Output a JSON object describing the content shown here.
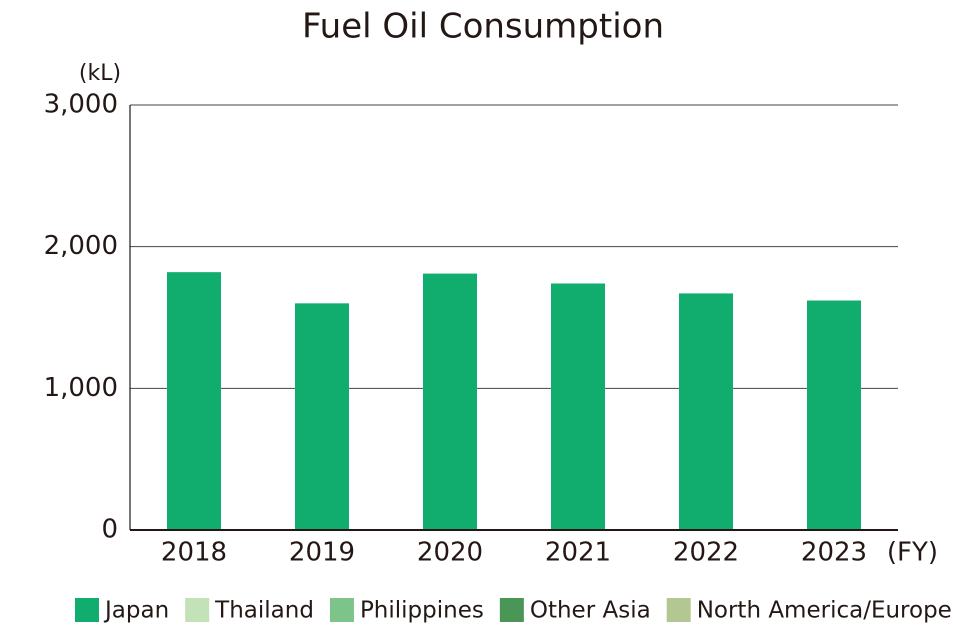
{
  "chart_data": {
    "type": "stacked-bar",
    "title": "Fuel Oil Consumption",
    "y_unit": "(kL)",
    "x_unit": "(FY)",
    "categories": [
      "2018",
      "2019",
      "2020",
      "2021",
      "2022",
      "2023"
    ],
    "series": [
      {
        "name": "Japan",
        "color": "#10ad6e",
        "values": [
          1820,
          1600,
          1810,
          1740,
          1670,
          1620
        ]
      },
      {
        "name": "Thailand",
        "color": "#c3e2b7",
        "values": [
          0,
          0,
          0,
          0,
          0,
          0
        ]
      },
      {
        "name": "Philippines",
        "color": "#7cc48a",
        "values": [
          0,
          0,
          0,
          0,
          0,
          0
        ]
      },
      {
        "name": "Other Asia",
        "color": "#4a9657",
        "values": [
          0,
          0,
          0,
          0,
          0,
          0
        ]
      },
      {
        "name": "North America/Europe",
        "color": "#b3c792",
        "values": [
          0,
          0,
          0,
          0,
          0,
          0
        ]
      }
    ],
    "ylim": [
      0,
      3000
    ],
    "yticks": [
      0,
      {
        "value": 1000,
        "label": "1,000"
      },
      {
        "value": 2000,
        "label": "2,000"
      },
      {
        "value": 3000,
        "label": "3,000"
      }
    ],
    "grid": true
  }
}
